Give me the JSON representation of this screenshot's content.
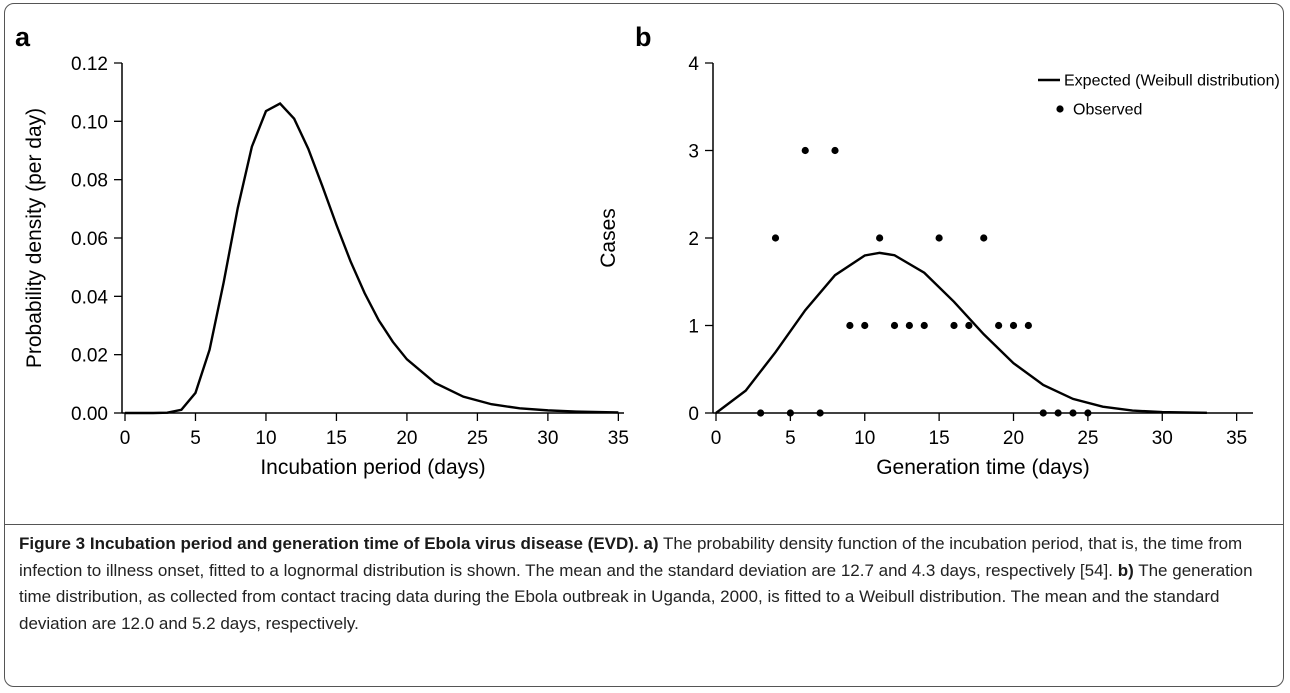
{
  "chart_data": [
    {
      "type": "line",
      "panel_label": "a",
      "x_label": "Incubation period (days)",
      "y_label": "Probability density (per day)",
      "xlim": [
        0,
        35.4
      ],
      "ylim": [
        0,
        0.12
      ],
      "xticks": [
        0,
        5,
        10,
        15,
        20,
        25,
        30,
        35
      ],
      "yticks": [
        {
          "value": 0,
          "label": "0.00"
        },
        {
          "value": 0.02,
          "label": "0.02"
        },
        {
          "value": 0.04,
          "label": "0.04"
        },
        {
          "value": 0.06,
          "label": "0.06"
        },
        {
          "value": 0.08,
          "label": "0.08"
        },
        {
          "value": 0.1,
          "label": "0.10"
        },
        {
          "value": 0.12,
          "label": "0.12"
        }
      ],
      "series": [
        {
          "type": "line",
          "color": "#000000",
          "x": [
            0,
            1,
            2,
            3,
            4,
            5,
            6,
            7,
            8,
            9,
            10,
            11,
            12,
            13,
            14,
            15,
            16,
            17,
            18,
            19,
            20,
            22,
            24,
            26,
            28,
            30,
            32,
            35
          ],
          "values": [
            0,
            0,
            0,
            0.0001,
            0.0011,
            0.0069,
            0.0217,
            0.0448,
            0.0703,
            0.0913,
            0.1035,
            0.1061,
            0.1009,
            0.0906,
            0.0778,
            0.0645,
            0.052,
            0.0411,
            0.0318,
            0.0244,
            0.0184,
            0.0103,
            0.0056,
            0.003,
            0.0016,
            0.0009,
            0.0005,
            0.0002
          ]
        }
      ]
    },
    {
      "type": "line",
      "panel_label": "b",
      "x_label": "Generation time (days)",
      "y_label": "Cases",
      "xlim": [
        0,
        36.1
      ],
      "ylim": [
        0,
        4
      ],
      "xticks": [
        0,
        5,
        10,
        15,
        20,
        25,
        30,
        35
      ],
      "yticks": [
        0,
        1,
        2,
        3,
        4
      ],
      "legend": "upper right",
      "series": [
        {
          "type": "line",
          "name": "Expected (Weibull distribution)",
          "color": "#000000",
          "x": [
            0,
            2,
            4,
            6,
            8,
            10,
            11,
            12,
            14,
            16,
            18,
            20,
            22,
            24,
            26,
            28,
            30,
            33
          ],
          "values": [
            0,
            0.256,
            0.695,
            1.175,
            1.575,
            1.8,
            1.83,
            1.803,
            1.603,
            1.271,
            0.9,
            0.569,
            0.321,
            0.161,
            0.072,
            0.028,
            0.01,
            0.002
          ]
        },
        {
          "type": "scatter",
          "name": "Observed",
          "color": "#000000",
          "x": [
            3,
            4,
            5,
            6,
            7,
            8,
            9,
            10,
            11,
            12,
            13,
            14,
            15,
            16,
            17,
            18,
            19,
            20,
            21,
            22,
            23,
            24,
            25
          ],
          "values": [
            0,
            2,
            0,
            3,
            0,
            3,
            1,
            1,
            2,
            1,
            1,
            1,
            2,
            1,
            1,
            2,
            1,
            1,
            1,
            0,
            0,
            0,
            0
          ]
        }
      ]
    }
  ],
  "caption": {
    "title": "Figure 3 Incubation period and generation time of Ebola virus disease (EVD).",
    "a_label": "a)",
    "a_text": "The probability density function of the incubation period, that is, the time from infection to illness onset, fitted to a lognormal distribution is shown. The mean and the standard deviation are 12.7 and 4.3 days, respectively [54].",
    "b_label": "b)",
    "b_text": "The generation time distribution, as collected from contact tracing data during the Ebola outbreak in Uganda, 2000, is fitted to a Weibull distribution. The mean and the standard deviation are 12.0 and 5.2 days, respectively."
  }
}
